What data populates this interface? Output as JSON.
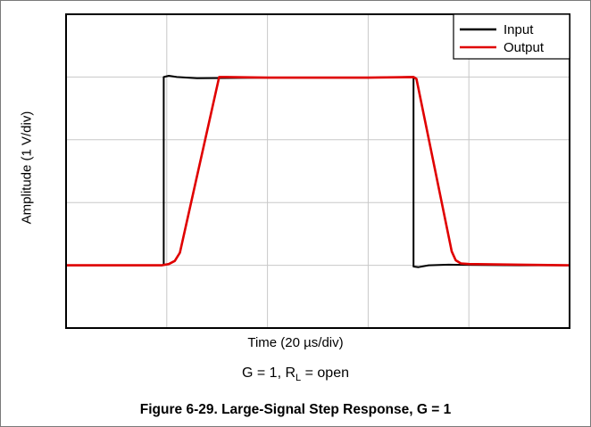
{
  "chart_data": {
    "type": "line",
    "xlabel": "Time (20 µs/div)",
    "ylabel": "Amplitude (1 V/div)",
    "xlim": [
      0,
      5
    ],
    "ylim": [
      0,
      5
    ],
    "grid": true,
    "legend_position": "top-right",
    "series": [
      {
        "name": "Input",
        "color": "#000000",
        "x": [
          0,
          0.95,
          0.97,
          0.97,
          1.02,
          1.1,
          1.3,
          2.0,
          3.0,
          3.4,
          3.44,
          3.45,
          3.45,
          3.5,
          3.6,
          3.8,
          4.5,
          5.0
        ],
        "y": [
          1.0,
          1.0,
          1.01,
          4.0,
          4.02,
          4.0,
          3.98,
          3.99,
          3.99,
          4.0,
          4.0,
          4.0,
          0.98,
          0.97,
          1.0,
          1.01,
          1.0,
          1.0
        ]
      },
      {
        "name": "Output",
        "color": "#e00000",
        "x": [
          0,
          0.95,
          1.02,
          1.08,
          1.13,
          1.52,
          1.55,
          2.0,
          3.0,
          3.45,
          3.48,
          3.83,
          3.87,
          3.92,
          4.0,
          4.5,
          5.0
        ],
        "y": [
          1.0,
          1.0,
          1.02,
          1.07,
          1.2,
          4.0,
          4.0,
          3.99,
          3.99,
          4.0,
          3.97,
          1.22,
          1.08,
          1.03,
          1.02,
          1.01,
          1.0
        ]
      }
    ]
  },
  "caption": {
    "condition_prefix": "G = 1, R",
    "condition_sub": "L",
    "condition_suffix": " = open",
    "figure": "Figure 6-29. Large-Signal Step Response, G = 1"
  }
}
